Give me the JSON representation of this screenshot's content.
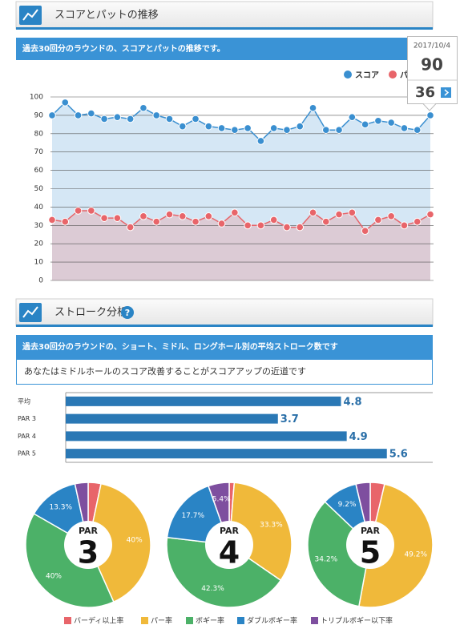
{
  "sections": [
    {
      "title": "スコアとパットの推移",
      "description": "過去30回分のラウンドの、スコアとパットの推移です。"
    },
    {
      "title": "ストローク分析",
      "help_icon": "?",
      "description": "過去30回分のラウンドの、ショート、ミドル、ロングホール別の平均ストローク数です",
      "message": "あなたはミドルホールのスコア改善することがスコアアップの近道です"
    }
  ],
  "chart_data": [
    {
      "type": "line",
      "series": [
        {
          "name": "スコア",
          "color": "#3a8fd0",
          "area_color": "#d5e7f5",
          "values": [
            90,
            97,
            90,
            91,
            88,
            89,
            88,
            94,
            90,
            88,
            84,
            88,
            84,
            83,
            82,
            83,
            76,
            83,
            82,
            84,
            94,
            82,
            82,
            89,
            85,
            87,
            86,
            83,
            82,
            90
          ]
        },
        {
          "name": "パット",
          "color": "#e8656a",
          "area_color": "#dccbd5",
          "values": [
            33,
            32,
            38,
            38,
            34,
            34,
            29,
            35,
            32,
            36,
            35,
            32,
            35,
            31,
            37,
            30,
            30,
            33,
            29,
            29,
            37,
            32,
            36,
            37,
            27,
            33,
            35,
            30,
            32,
            36
          ]
        }
      ],
      "ylim": [
        0,
        100
      ],
      "yticks": [
        0,
        10,
        20,
        30,
        40,
        50,
        60,
        70,
        80,
        90,
        100
      ],
      "grid": true,
      "tooltip": {
        "date": "2017/10/4",
        "score": 90,
        "putt": 36
      }
    },
    {
      "type": "hbar",
      "color": "#2a78b5",
      "categories": [
        "平均",
        "PAR 3",
        "PAR 4",
        "PAR 5"
      ],
      "values": [
        4.8,
        3.7,
        4.9,
        5.6
      ],
      "xlim": [
        0,
        6.4
      ]
    },
    {
      "type": "pie",
      "title_top": "PAR",
      "title_main": "3",
      "categories": [
        "バーディ以上率",
        "パー率",
        "ボギー率",
        "ダブルボギー率",
        "トリプルボギー以下率"
      ],
      "colors": [
        "#e8656a",
        "#f0b93a",
        "#4cb168",
        "#2a84c5",
        "#7e4f9f"
      ],
      "values": [
        3.3,
        40,
        40,
        13.3,
        3.4
      ],
      "value_labels": [
        null,
        "40%",
        "40%",
        "13.3%",
        null
      ]
    },
    {
      "type": "pie",
      "title_top": "PAR",
      "title_main": "4",
      "categories": [
        "バーディ以上率",
        "パー率",
        "ボギー率",
        "ダブルボギー率",
        "トリプルボギー以下率"
      ],
      "colors": [
        "#e8656a",
        "#f0b93a",
        "#4cb168",
        "#2a84c5",
        "#7e4f9f"
      ],
      "values": [
        1.3,
        33.3,
        42.3,
        17.7,
        5.4
      ],
      "value_labels": [
        null,
        "33.3%",
        "42.3%",
        "17.7%",
        "5.4%"
      ]
    },
    {
      "type": "pie",
      "title_top": "PAR",
      "title_main": "5",
      "categories": [
        "バーディ以上率",
        "パー率",
        "ボギー率",
        "ダブルボギー率",
        "トリプルボギー以下率"
      ],
      "colors": [
        "#e8656a",
        "#f0b93a",
        "#4cb168",
        "#2a84c5",
        "#7e4f9f"
      ],
      "values": [
        3.7,
        49.2,
        34.2,
        9.2,
        3.7
      ],
      "value_labels": [
        null,
        "49.2%",
        "34.2%",
        "9.2%",
        null
      ]
    }
  ]
}
